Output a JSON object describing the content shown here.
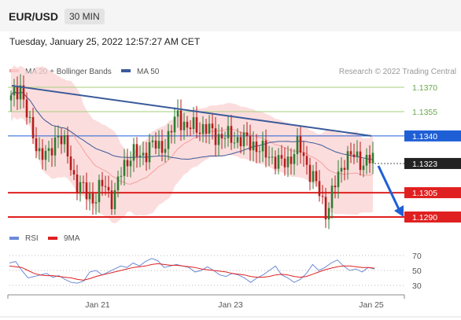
{
  "header": {
    "pair": "EUR/USD",
    "timeframe": "30 MIN",
    "timestamp": "Tuesday, January 25, 2022 12:57:27 AM CET"
  },
  "legend": {
    "ma20_label": "MA 20 + Bollinger Bands",
    "ma50_label": "MA 50",
    "credit": "Research © 2022 Trading Central",
    "rsi_label": "RSI",
    "ma9_label": "9MA"
  },
  "colors": {
    "accent_blue": "#1f5fd6",
    "support_red": "#e02020",
    "resistance_green": "#a6cf7a",
    "bollinger_fill": "#fbd2d2",
    "ma20": "#f3a0a0",
    "ma50": "#3a5a9a",
    "trendline": "#3a5a9a",
    "rsi": "#6b8ad6",
    "rsi_ma9": "#e02020",
    "candle_up": "#2e7d32",
    "candle_down": "#b71c1c"
  },
  "chart_data": [
    {
      "type": "candlestick",
      "ylim": [
        1.128,
        1.138
      ],
      "x_ticks": [
        "Jan 21",
        "Jan 23",
        "Jan 25"
      ],
      "resistance_levels": [
        1.137,
        1.1355
      ],
      "key_level": 1.134,
      "last_price": 1.1323,
      "support_levels": [
        1.1305,
        1.129
      ],
      "ohlc_close_path": [
        1.1362,
        1.1372,
        1.1345,
        1.1331,
        1.1326,
        1.1343,
        1.133,
        1.1311,
        1.1305,
        1.1301,
        1.1311,
        1.13,
        1.132,
        1.133,
        1.1326,
        1.1335,
        1.1332,
        1.1339,
        1.1354,
        1.1344,
        1.1346,
        1.1344,
        1.1341,
        1.1339,
        1.1339,
        1.1337,
        1.1336,
        1.133,
        1.1328,
        1.1322,
        1.1326,
        1.1334,
        1.1321,
        1.1308,
        1.1293,
        1.1311,
        1.1327,
        1.1327,
        1.1324,
        1.1325
      ]
    },
    {
      "type": "line",
      "name": "RSI",
      "y_ticks": [
        70,
        50,
        30
      ],
      "series": [
        {
          "name": "RSI",
          "values": [
            60,
            62,
            50,
            40,
            42,
            44,
            46,
            41,
            43,
            38,
            34,
            33,
            36,
            48,
            50,
            44,
            48,
            52,
            56,
            54,
            60,
            56,
            62,
            66,
            63,
            54,
            56,
            58,
            56,
            54,
            48,
            50,
            55,
            50,
            44,
            42,
            46,
            44,
            40,
            34,
            40,
            44,
            50,
            56,
            44,
            40,
            34,
            38,
            46,
            58,
            50,
            54,
            60,
            64,
            56,
            50,
            52,
            48,
            54,
            52
          ]
        },
        {
          "name": "9MA",
          "values": [
            56,
            55,
            54,
            50,
            46,
            44,
            43,
            43,
            42,
            41,
            40,
            38,
            37,
            39,
            42,
            44,
            46,
            48,
            50,
            52,
            54,
            55,
            56,
            58,
            59,
            58,
            57,
            57,
            56,
            55,
            54,
            52,
            51,
            50,
            49,
            48,
            46,
            45,
            44,
            42,
            41,
            41,
            42,
            44,
            45,
            44,
            42,
            41,
            42,
            45,
            48,
            51,
            53,
            55,
            56,
            56,
            55,
            54,
            54,
            53
          ]
        }
      ]
    }
  ]
}
